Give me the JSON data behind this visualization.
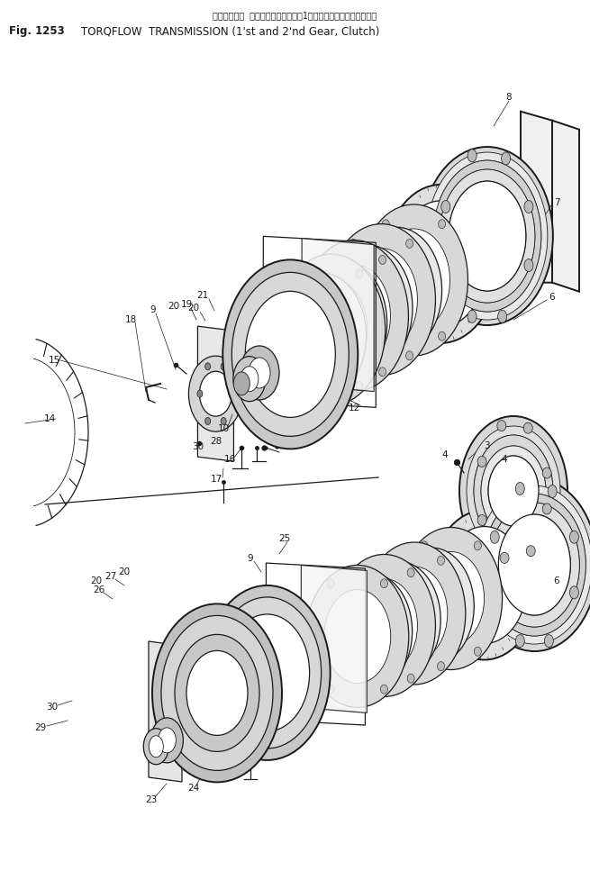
{
  "title_japanese": "トルクフロー トランスミッション（1速、２速ギヤー、クラッチ）",
  "fig_label": "Fig. 1253",
  "title_english": "TORQFLOW  TRANSMISSION (1'st and 2'nd Gear, Clutch)",
  "bg_color": "#ffffff",
  "line_color": "#1a1a1a",
  "fig_width": 6.55,
  "fig_height": 9.67,
  "dpi": 100
}
